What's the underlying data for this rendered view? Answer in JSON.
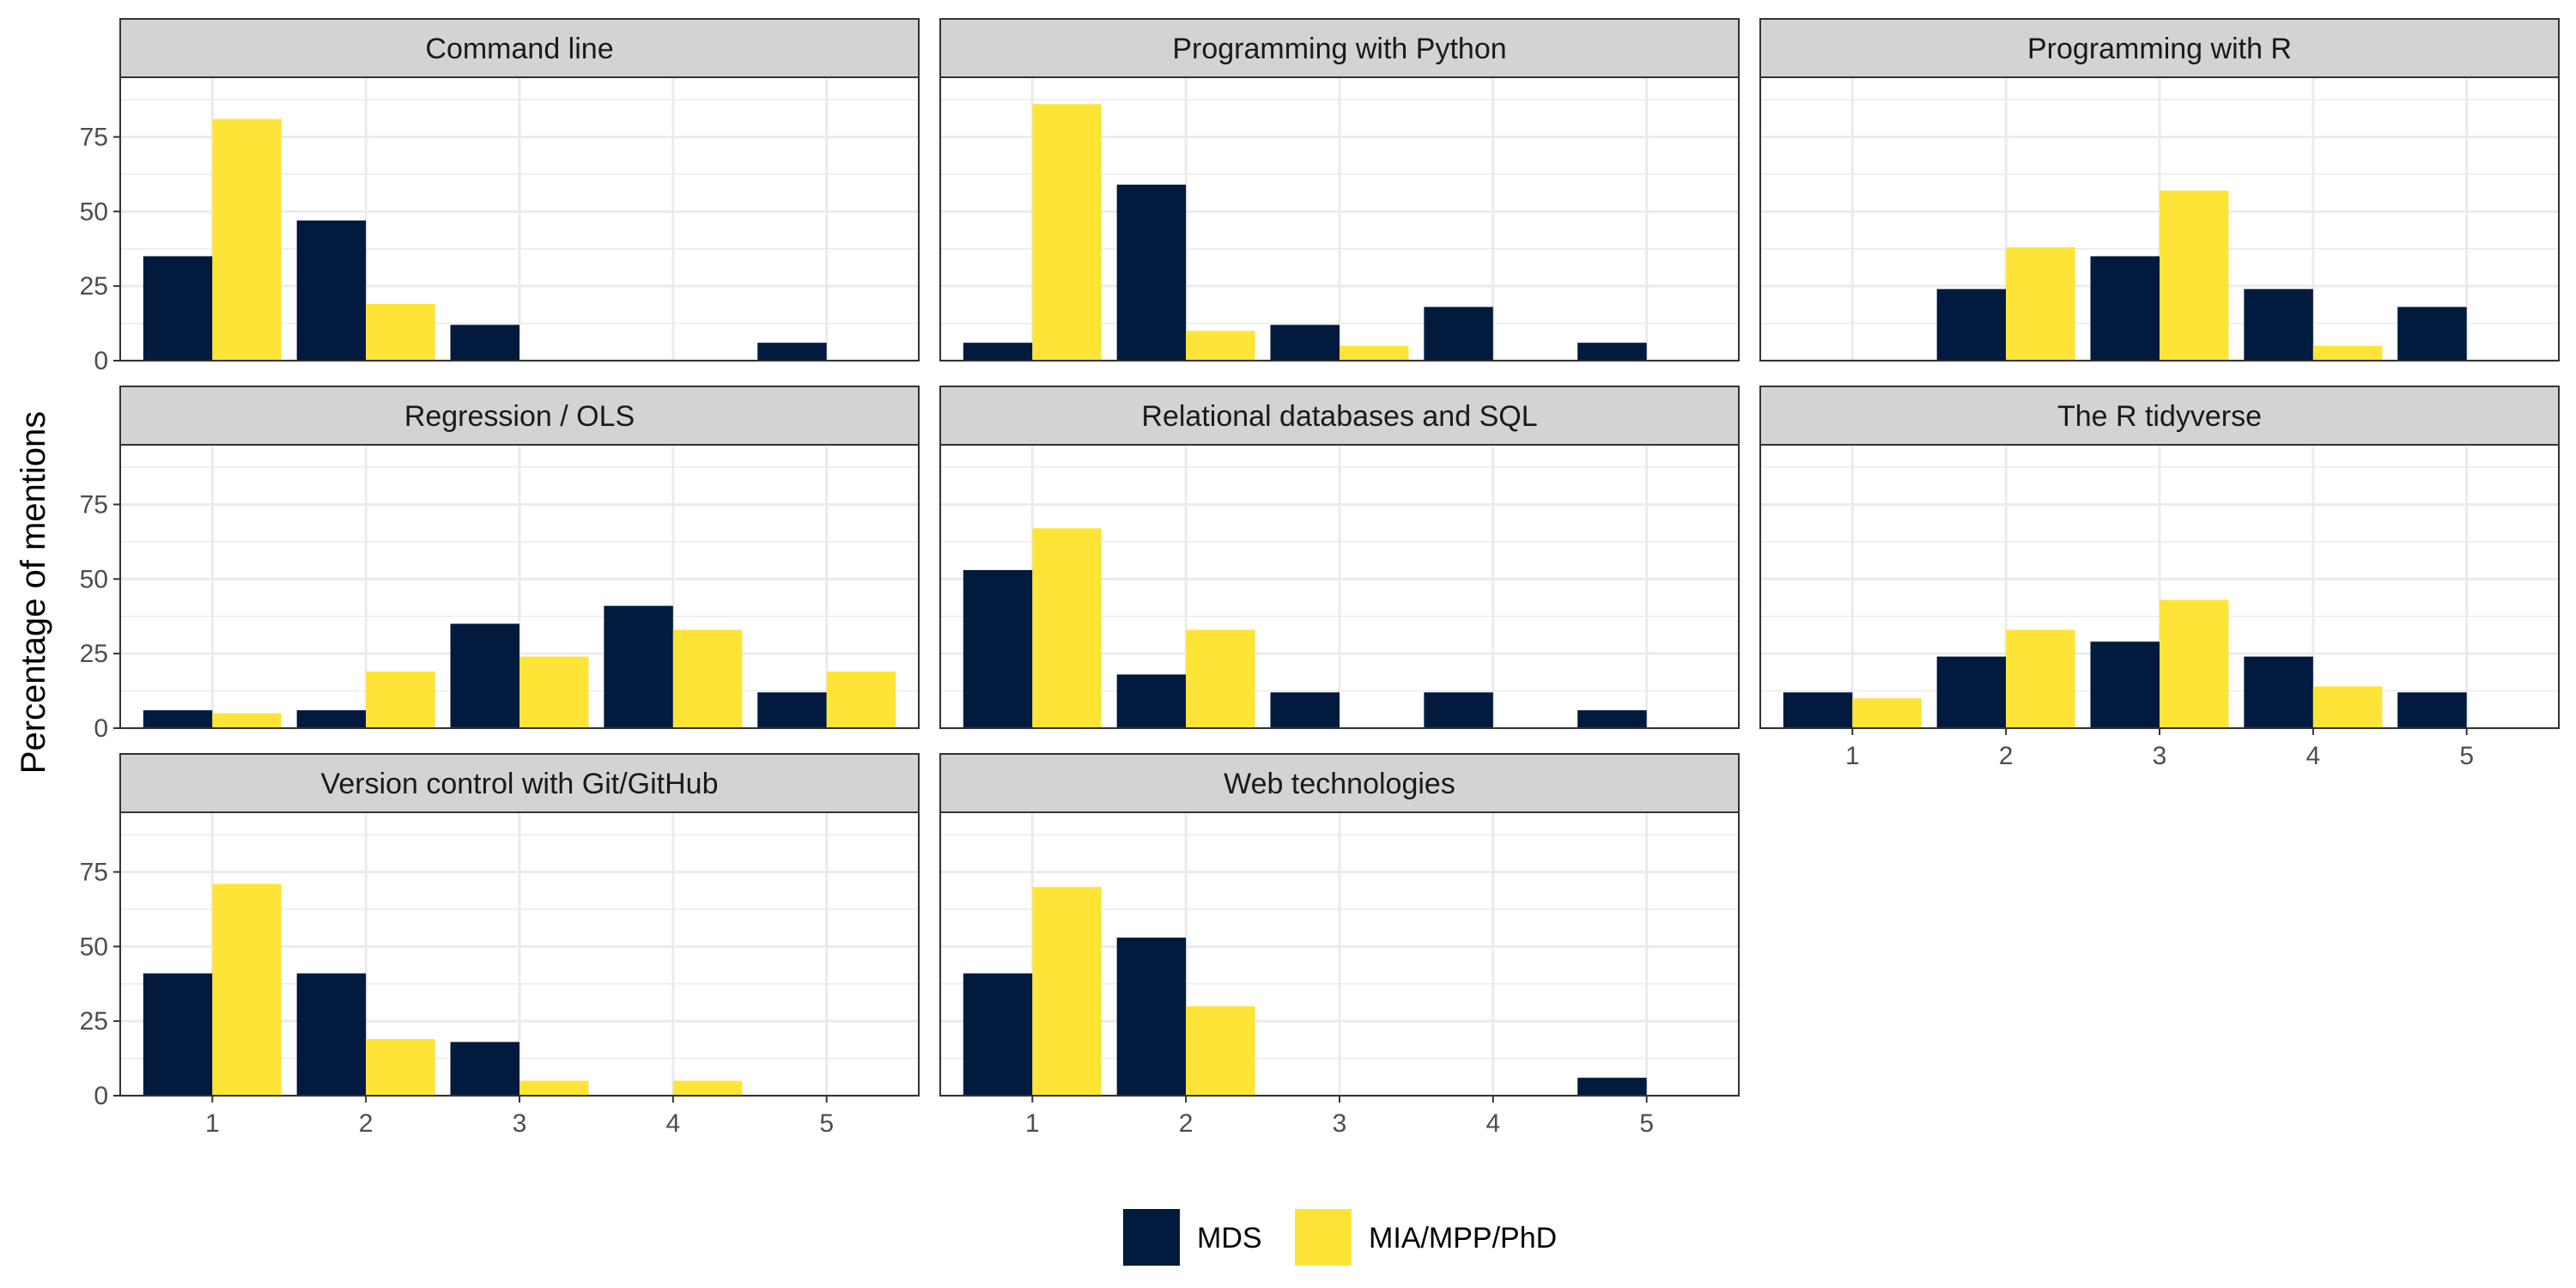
{
  "chart_data": {
    "type": "bar",
    "layout": "faceted-grid",
    "ylabel": "Percentage of mentions",
    "xlabel": "",
    "categories": [
      "1",
      "2",
      "3",
      "4",
      "5"
    ],
    "yticks": [
      0,
      25,
      50,
      75
    ],
    "ylim": [
      0,
      95
    ],
    "legend_position": "bottom",
    "series_names": [
      "MDS",
      "MIA/MPP/PhD"
    ],
    "colors": {
      "MDS": "#021A3E",
      "MIA/MPP/PhD": "#FFE438",
      "strip_bg": "#D3D3D3",
      "panel_border": "#333333",
      "grid": "#EBEBEB",
      "tick_text": "#4D4D4D"
    },
    "panels": [
      {
        "title": "Command line",
        "series": [
          {
            "name": "MDS",
            "values": [
              35,
              47,
              12,
              0,
              6
            ]
          },
          {
            "name": "MIA/MPP/PhD",
            "values": [
              81,
              19,
              0,
              0,
              0
            ]
          }
        ]
      },
      {
        "title": "Programming with Python",
        "series": [
          {
            "name": "MDS",
            "values": [
              6,
              59,
              12,
              18,
              6
            ]
          },
          {
            "name": "MIA/MPP/PhD",
            "values": [
              86,
              10,
              5,
              0,
              0
            ]
          }
        ]
      },
      {
        "title": "Programming with R",
        "series": [
          {
            "name": "MDS",
            "values": [
              0,
              24,
              35,
              24,
              18
            ]
          },
          {
            "name": "MIA/MPP/PhD",
            "values": [
              0,
              38,
              57,
              5,
              0
            ]
          }
        ]
      },
      {
        "title": "Regression / OLS",
        "series": [
          {
            "name": "MDS",
            "values": [
              6,
              6,
              35,
              41,
              12
            ]
          },
          {
            "name": "MIA/MPP/PhD",
            "values": [
              5,
              19,
              24,
              33,
              19
            ]
          }
        ]
      },
      {
        "title": "Relational databases and SQL",
        "series": [
          {
            "name": "MDS",
            "values": [
              53,
              18,
              12,
              12,
              6
            ]
          },
          {
            "name": "MIA/MPP/PhD",
            "values": [
              67,
              33,
              0,
              0,
              0
            ]
          }
        ]
      },
      {
        "title": "The R tidyverse",
        "series": [
          {
            "name": "MDS",
            "values": [
              12,
              24,
              29,
              24,
              12
            ]
          },
          {
            "name": "MIA/MPP/PhD",
            "values": [
              10,
              33,
              43,
              14,
              0
            ]
          }
        ]
      },
      {
        "title": "Version control with Git/GitHub",
        "series": [
          {
            "name": "MDS",
            "values": [
              41,
              41,
              18,
              0,
              0
            ]
          },
          {
            "name": "MIA/MPP/PhD",
            "values": [
              71,
              19,
              5,
              5,
              0
            ]
          }
        ]
      },
      {
        "title": "Web technologies",
        "series": [
          {
            "name": "MDS",
            "values": [
              41,
              53,
              0,
              0,
              6
            ]
          },
          {
            "name": "MIA/MPP/PhD",
            "values": [
              70,
              30,
              0,
              0,
              0
            ]
          }
        ]
      }
    ]
  }
}
